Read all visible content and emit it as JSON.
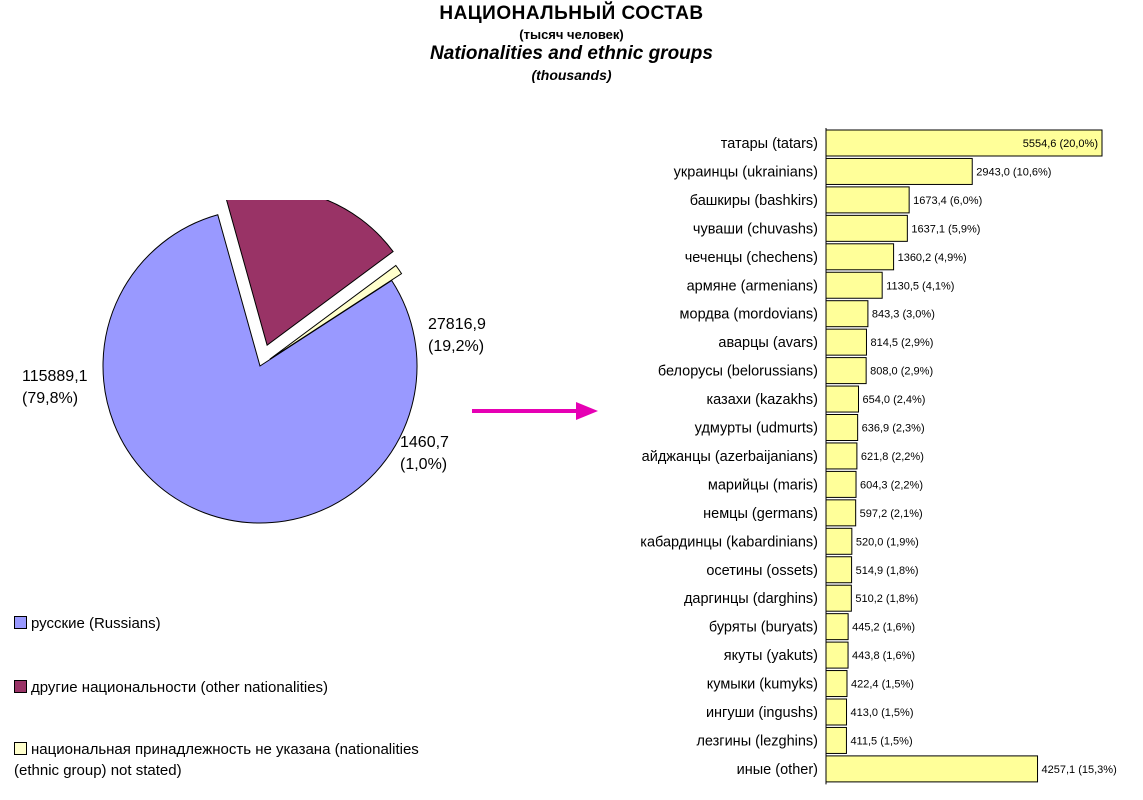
{
  "header": {
    "title_ru": "НАЦИОНАЛЬНЫЙ СОСТАВ",
    "unit_ru": "(тысяч человек)",
    "title_en": "Nationalities and ethnic groups",
    "unit_en": "(thousands)"
  },
  "colors": {
    "russians": "#9999ff",
    "other": "#993366",
    "not_stated": "#ffffcc",
    "bar": "#ffff99",
    "arrow": "#e600b4"
  },
  "chart_data": [
    {
      "type": "pie",
      "slices": [
        {
          "label": "русские (Russians)",
          "value": 115889.1,
          "value_text": "115889,1",
          "pct_text": "(79,8%)",
          "color": "#9999ff"
        },
        {
          "label": "другие национальности (other nationalities)",
          "value": 27816.9,
          "value_text": "27816,9",
          "pct_text": "(19,2%)",
          "color": "#993366",
          "exploded": true
        },
        {
          "label": "национальная принадлежность не указана (nationalities (ethnic group) not stated)",
          "value": 1460.7,
          "value_text": "1460,7",
          "pct_text": "(1,0%)",
          "color": "#ffffcc",
          "exploded": true
        }
      ],
      "legend": [
        {
          "text": "русские (Russians)",
          "color": "#9999ff"
        },
        {
          "text": "другие национальности (other nationalities)",
          "color": "#993366"
        },
        {
          "text_line1": "национальная принадлежность не указана (nationalities",
          "text_line2": "(ethnic group) not stated)",
          "color": "#ffffcc"
        }
      ]
    },
    {
      "type": "bar",
      "orientation": "horizontal",
      "categories": [
        "татары (tatars)",
        "украинцы (ukrainians)",
        "башкиры (bashkirs)",
        "чуваши (chuvashs)",
        "чеченцы (chechens)",
        "армяне (armenians)",
        "мордва (mordovians)",
        "аварцы (avars)",
        "белорусы (belorussians)",
        "казахи (kazakhs)",
        "удмурты (udmurts)",
        "айджанцы (azerbaijanians)",
        "марийцы (maris)",
        "немцы (germans)",
        "кабардинцы (kabardinians)",
        "осетины (ossets)",
        "даргинцы (darghins)",
        "буряты (buryats)",
        "якуты (yakuts)",
        "кумыки (kumyks)",
        "ингуши (ingushs)",
        "лезгины (lezghins)",
        "иные (other)"
      ],
      "values": [
        5554.6,
        2943.0,
        1673.4,
        1637.1,
        1360.2,
        1130.5,
        843.3,
        814.5,
        808.0,
        654.0,
        636.9,
        621.8,
        604.3,
        597.2,
        520.0,
        514.9,
        510.2,
        445.2,
        443.8,
        422.4,
        413.0,
        411.5,
        4257.1
      ],
      "data_labels": [
        "5554,6 (20,0%)",
        "2943,0 (10,6%)",
        "1673,4 (6,0%)",
        "1637,1 (5,9%)",
        "1360,2 (4,9%)",
        "1130,5 (4,1%)",
        "843,3 (3,0%)",
        "814,5 (2,9%)",
        "808,0 (2,9%)",
        "654,0 (2,4%)",
        "636,9 (2,3%)",
        "621,8 (2,2%)",
        "604,3 (2,2%)",
        "597,2 (2,1%)",
        "520,0 (1,9%)",
        "514,9 (1,8%)",
        "510,2 (1,8%)",
        "445,2 (1,6%)",
        "443,8 (1,6%)",
        "422,4 (1,5%)",
        "413,0 (1,5%)",
        "411,5 (1,5%)",
        "4257,1 (15,3%)"
      ],
      "color": "#ffff99"
    }
  ]
}
